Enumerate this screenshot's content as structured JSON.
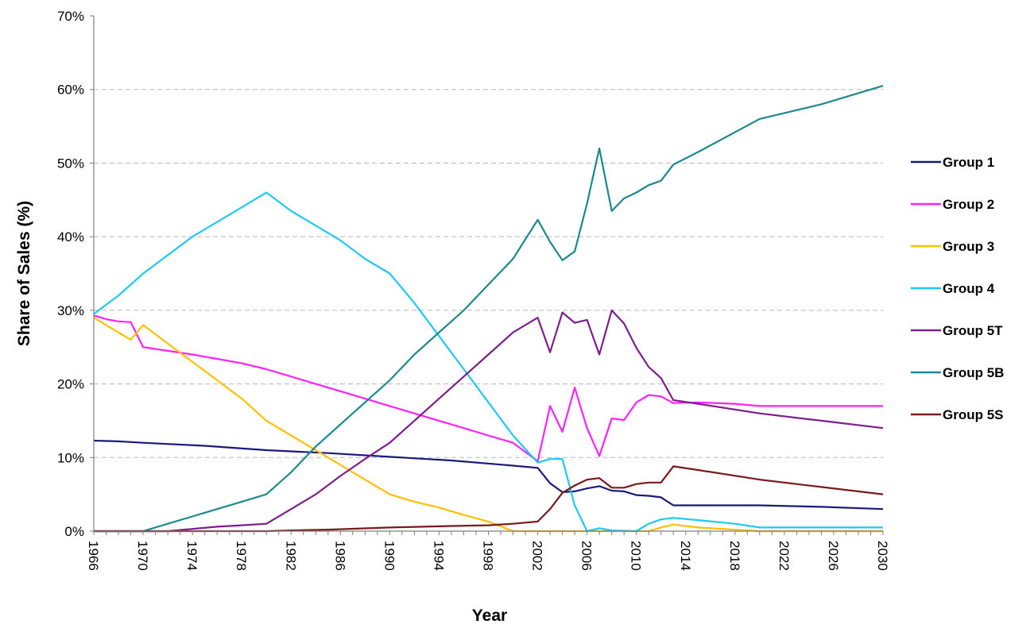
{
  "chart_data": {
    "type": "line",
    "title": "",
    "xlabel": "Year",
    "ylabel": "Share of Sales (%)",
    "xlim": [
      1966,
      2030
    ],
    "ylim": [
      0,
      70
    ],
    "x_tick_labels": [
      "1966",
      "1970",
      "1974",
      "1978",
      "1982",
      "1986",
      "1990",
      "1994",
      "1998",
      "2002",
      "2006",
      "2010",
      "2014",
      "2018",
      "2022",
      "2026",
      "2030"
    ],
    "y_tick_labels": [
      "0%",
      "10%",
      "20%",
      "30%",
      "40%",
      "50%",
      "60%",
      "70%"
    ],
    "grid": "horizontal dashed",
    "legend_position": "right",
    "series": [
      {
        "name": "Group 1",
        "color": "#1a1a7e",
        "points": [
          [
            1966,
            12.3
          ],
          [
            1968,
            12.2
          ],
          [
            1970,
            12.0
          ],
          [
            1975,
            11.6
          ],
          [
            1980,
            11.0
          ],
          [
            1985,
            10.6
          ],
          [
            1990,
            10.1
          ],
          [
            1995,
            9.6
          ],
          [
            2000,
            8.9
          ],
          [
            2002,
            8.6
          ],
          [
            2003,
            6.5
          ],
          [
            2004,
            5.3
          ],
          [
            2005,
            5.4
          ],
          [
            2006,
            5.8
          ],
          [
            2007,
            6.1
          ],
          [
            2008,
            5.5
          ],
          [
            2009,
            5.4
          ],
          [
            2010,
            4.9
          ],
          [
            2011,
            4.8
          ],
          [
            2012,
            4.6
          ],
          [
            2013,
            3.5
          ],
          [
            2015,
            3.5
          ],
          [
            2020,
            3.5
          ],
          [
            2025,
            3.3
          ],
          [
            2030,
            3.0
          ]
        ]
      },
      {
        "name": "Group 2",
        "color": "#ff22ff",
        "points": [
          [
            1966,
            29.3
          ],
          [
            1967,
            28.8
          ],
          [
            1968,
            28.5
          ],
          [
            1969,
            28.4
          ],
          [
            1970,
            25.0
          ],
          [
            1972,
            24.5
          ],
          [
            1974,
            24.0
          ],
          [
            1976,
            23.4
          ],
          [
            1978,
            22.8
          ],
          [
            1980,
            22.0
          ],
          [
            1982,
            21.0
          ],
          [
            1984,
            20.0
          ],
          [
            1986,
            19.0
          ],
          [
            1988,
            18.0
          ],
          [
            1990,
            17.0
          ],
          [
            1992,
            16.0
          ],
          [
            1994,
            15.0
          ],
          [
            1996,
            14.0
          ],
          [
            1998,
            13.0
          ],
          [
            2000,
            12.0
          ],
          [
            2002,
            9.5
          ],
          [
            2003,
            17.0
          ],
          [
            2004,
            13.5
          ],
          [
            2005,
            19.5
          ],
          [
            2006,
            14.0
          ],
          [
            2007,
            10.2
          ],
          [
            2008,
            15.3
          ],
          [
            2009,
            15.1
          ],
          [
            2010,
            17.5
          ],
          [
            2011,
            18.5
          ],
          [
            2012,
            18.3
          ],
          [
            2013,
            17.4
          ],
          [
            2015,
            17.5
          ],
          [
            2018,
            17.3
          ],
          [
            2020,
            17.0
          ],
          [
            2030,
            17.0
          ]
        ]
      },
      {
        "name": "Group 3",
        "color": "#ffc000",
        "points": [
          [
            1966,
            29.0
          ],
          [
            1968,
            27.0
          ],
          [
            1969,
            26.0
          ],
          [
            1970,
            28.0
          ],
          [
            1972,
            25.5
          ],
          [
            1974,
            23.0
          ],
          [
            1976,
            20.5
          ],
          [
            1978,
            18.0
          ],
          [
            1980,
            15.0
          ],
          [
            1982,
            13.0
          ],
          [
            1984,
            11.0
          ],
          [
            1986,
            9.0
          ],
          [
            1988,
            7.0
          ],
          [
            1990,
            5.0
          ],
          [
            1992,
            4.0
          ],
          [
            1994,
            3.2
          ],
          [
            1996,
            2.2
          ],
          [
            1998,
            1.3
          ],
          [
            2000,
            0
          ],
          [
            2011,
            0
          ],
          [
            2012,
            0.5
          ],
          [
            2013,
            0.9
          ],
          [
            2015,
            0.5
          ],
          [
            2018,
            0.2
          ],
          [
            2020,
            0
          ],
          [
            2030,
            0
          ]
        ]
      },
      {
        "name": "Group 4",
        "color": "#1fc8f5",
        "points": [
          [
            1966,
            29.5
          ],
          [
            1968,
            32.0
          ],
          [
            1970,
            35.0
          ],
          [
            1972,
            37.5
          ],
          [
            1974,
            40.0
          ],
          [
            1976,
            42.0
          ],
          [
            1978,
            44.0
          ],
          [
            1980,
            46.0
          ],
          [
            1982,
            43.5
          ],
          [
            1984,
            41.5
          ],
          [
            1986,
            39.5
          ],
          [
            1988,
            37.0
          ],
          [
            1990,
            35.0
          ],
          [
            1992,
            31.0
          ],
          [
            1994,
            26.5
          ],
          [
            1996,
            22.0
          ],
          [
            1998,
            17.5
          ],
          [
            2000,
            13.0
          ],
          [
            2002,
            9.3
          ],
          [
            2003,
            9.8
          ],
          [
            2004,
            9.8
          ],
          [
            2005,
            3.5
          ],
          [
            2006,
            0
          ],
          [
            2007,
            0.4
          ],
          [
            2008,
            0.1
          ],
          [
            2010,
            0
          ],
          [
            2011,
            1.0
          ],
          [
            2012,
            1.6
          ],
          [
            2013,
            1.8
          ],
          [
            2015,
            1.5
          ],
          [
            2018,
            1.0
          ],
          [
            2020,
            0.5
          ],
          [
            2030,
            0.5
          ]
        ]
      },
      {
        "name": "Group 5T",
        "color": "#7a1f8c",
        "points": [
          [
            1966,
            0
          ],
          [
            1972,
            0
          ],
          [
            1974,
            0.3
          ],
          [
            1976,
            0.6
          ],
          [
            1978,
            0.8
          ],
          [
            1980,
            1.0
          ],
          [
            1982,
            3.0
          ],
          [
            1984,
            5.0
          ],
          [
            1986,
            7.5
          ],
          [
            1988,
            9.8
          ],
          [
            1990,
            12.0
          ],
          [
            1992,
            15.0
          ],
          [
            1994,
            18.0
          ],
          [
            1996,
            21.0
          ],
          [
            1998,
            24.0
          ],
          [
            2000,
            27.0
          ],
          [
            2002,
            29.0
          ],
          [
            2003,
            24.3
          ],
          [
            2004,
            29.7
          ],
          [
            2005,
            28.3
          ],
          [
            2006,
            28.7
          ],
          [
            2007,
            24.0
          ],
          [
            2008,
            30.0
          ],
          [
            2009,
            28.2
          ],
          [
            2010,
            24.9
          ],
          [
            2011,
            22.3
          ],
          [
            2012,
            20.8
          ],
          [
            2013,
            17.8
          ],
          [
            2015,
            17.3
          ],
          [
            2020,
            16.0
          ],
          [
            2025,
            15.0
          ],
          [
            2030,
            14.0
          ]
        ]
      },
      {
        "name": "Group 5B",
        "color": "#1a8a8a",
        "points": [
          [
            1966,
            0
          ],
          [
            1970,
            0
          ],
          [
            1972,
            1.0
          ],
          [
            1974,
            2.0
          ],
          [
            1976,
            3.0
          ],
          [
            1978,
            4.0
          ],
          [
            1980,
            5.0
          ],
          [
            1982,
            8.0
          ],
          [
            1984,
            11.5
          ],
          [
            1986,
            14.5
          ],
          [
            1988,
            17.5
          ],
          [
            1990,
            20.5
          ],
          [
            1992,
            24.0
          ],
          [
            1994,
            27.0
          ],
          [
            1996,
            30.0
          ],
          [
            1998,
            33.5
          ],
          [
            2000,
            37.0
          ],
          [
            2002,
            42.3
          ],
          [
            2003,
            39.3
          ],
          [
            2004,
            36.8
          ],
          [
            2005,
            38.0
          ],
          [
            2006,
            44.5
          ],
          [
            2007,
            52.0
          ],
          [
            2008,
            43.5
          ],
          [
            2009,
            45.2
          ],
          [
            2010,
            46.0
          ],
          [
            2011,
            47.0
          ],
          [
            2012,
            47.6
          ],
          [
            2013,
            49.8
          ],
          [
            2015,
            51.5
          ],
          [
            2020,
            56.0
          ],
          [
            2025,
            58.0
          ],
          [
            2030,
            60.5
          ]
        ]
      },
      {
        "name": "Group 5S",
        "color": "#7a1a1a",
        "points": [
          [
            1966,
            0
          ],
          [
            1980,
            0
          ],
          [
            1982,
            0.1
          ],
          [
            1985,
            0.2
          ],
          [
            1990,
            0.5
          ],
          [
            1995,
            0.7
          ],
          [
            1998,
            0.8
          ],
          [
            2000,
            1.0
          ],
          [
            2002,
            1.3
          ],
          [
            2003,
            3.0
          ],
          [
            2004,
            5.2
          ],
          [
            2005,
            6.2
          ],
          [
            2006,
            7.0
          ],
          [
            2007,
            7.2
          ],
          [
            2008,
            5.9
          ],
          [
            2009,
            5.9
          ],
          [
            2010,
            6.4
          ],
          [
            2011,
            6.6
          ],
          [
            2012,
            6.6
          ],
          [
            2013,
            8.8
          ],
          [
            2015,
            8.3
          ],
          [
            2020,
            7.0
          ],
          [
            2025,
            6.0
          ],
          [
            2030,
            5.0
          ]
        ]
      }
    ]
  }
}
